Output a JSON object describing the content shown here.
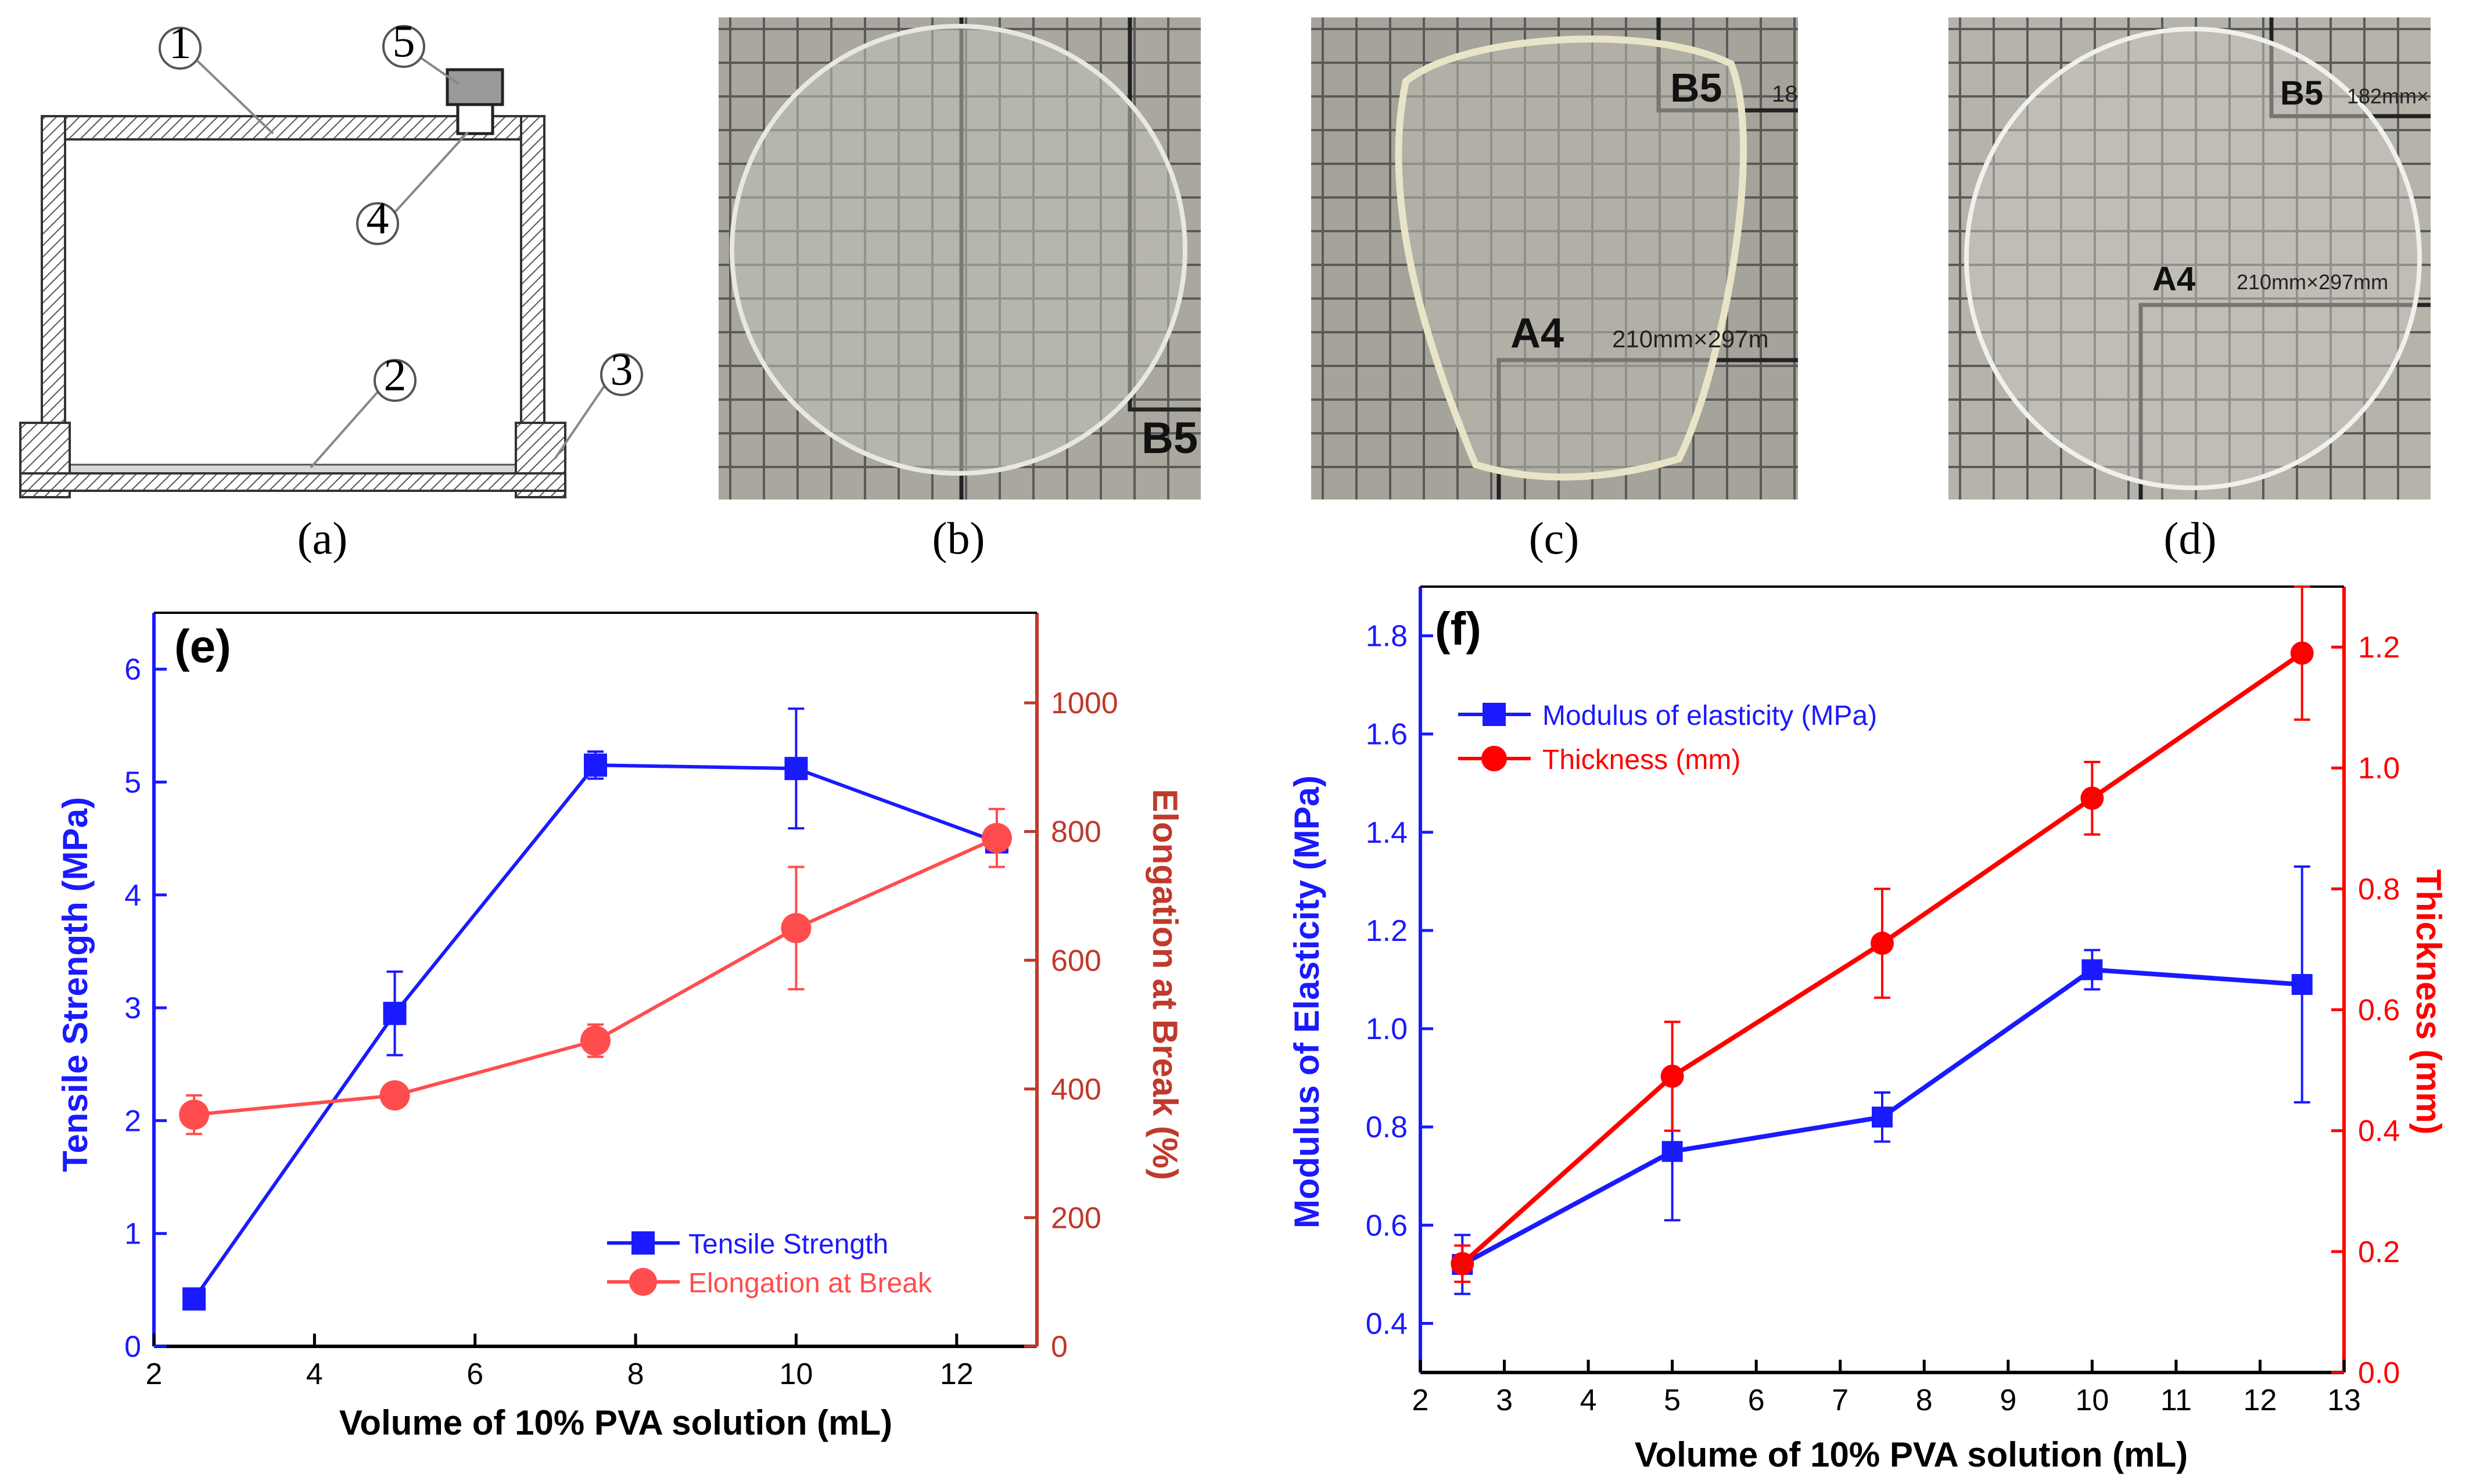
{
  "captions": {
    "a": "(a)",
    "b": "(b)",
    "c": "(c)",
    "d": "(d)"
  },
  "schematic": {
    "callouts": [
      "1",
      "2",
      "3",
      "4",
      "5"
    ]
  },
  "photos": {
    "b": {
      "labels": [
        "B5"
      ]
    },
    "c": {
      "labels": [
        "B5",
        "18",
        "A4",
        "210mm×297m"
      ]
    },
    "d": {
      "labels": [
        "B5",
        "182mm×",
        "A4",
        "210mm×297mm"
      ]
    }
  },
  "colors": {
    "blue": "#1a1aff",
    "red": "#ff4d4d",
    "red_f": "#ff0000",
    "axis_red_e": "#c0392b"
  },
  "chart_data": [
    {
      "panel": "(e)",
      "type": "line",
      "x": [
        2.5,
        5,
        7.5,
        10,
        12.5
      ],
      "xlabel": "Volume of 10% PVA solution (mL)",
      "xlim": [
        2,
        13
      ],
      "xticks": [
        2,
        4,
        6,
        8,
        10,
        12
      ],
      "series": [
        {
          "name": "Tensile Strength",
          "axis": "left",
          "marker": "square",
          "values": [
            0.42,
            2.95,
            5.15,
            5.12,
            4.47
          ],
          "errors": [
            0.05,
            0.37,
            0.12,
            0.53,
            0.05
          ]
        },
        {
          "name": "Elongation at Break",
          "axis": "right",
          "marker": "circle",
          "values": [
            360,
            390,
            475,
            650,
            790
          ],
          "errors": [
            30,
            15,
            25,
            95,
            45
          ]
        }
      ],
      "ylabel_left": "Tensile Strength (MPa)",
      "ylim_left": [
        0,
        6.5
      ],
      "yticks_left": [
        0,
        1,
        2,
        3,
        4,
        5,
        6
      ],
      "ylabel_right": "Elongation at Break (%)",
      "ylim_right": [
        0,
        1140
      ],
      "yticks_right": [
        0,
        200,
        400,
        600,
        800,
        1000
      ],
      "legend": "bottom-right"
    },
    {
      "panel": "(f)",
      "type": "line",
      "x": [
        2.5,
        5,
        7.5,
        10,
        12.5
      ],
      "xlabel": "Volume of 10% PVA solution (mL)",
      "xlim": [
        2,
        13
      ],
      "xticks": [
        2,
        3,
        4,
        5,
        6,
        7,
        8,
        9,
        10,
        11,
        12,
        13
      ],
      "series": [
        {
          "name": "Modulus of elasticity (MPa)",
          "axis": "left",
          "marker": "square",
          "values": [
            0.52,
            0.75,
            0.82,
            1.12,
            1.09
          ],
          "errors": [
            0.06,
            0.14,
            0.05,
            0.04,
            0.24
          ]
        },
        {
          "name": "Thickness (mm)",
          "axis": "right",
          "marker": "circle",
          "values": [
            0.18,
            0.49,
            0.71,
            0.95,
            1.19
          ],
          "errors": [
            0.03,
            0.09,
            0.09,
            0.06,
            0.11
          ]
        }
      ],
      "ylabel_left": "Modulus of Elasticity (MPa)",
      "ylim_left": [
        0.3,
        1.9
      ],
      "yticks_left": [
        0.4,
        0.6,
        0.8,
        1.0,
        1.2,
        1.4,
        1.6,
        1.8
      ],
      "ylabel_right": "Thickness (mm)",
      "ylim_right": [
        0,
        1.3
      ],
      "yticks_right": [
        0.0,
        0.2,
        0.4,
        0.6,
        0.8,
        1.0,
        1.2
      ],
      "legend": "top-left"
    }
  ]
}
